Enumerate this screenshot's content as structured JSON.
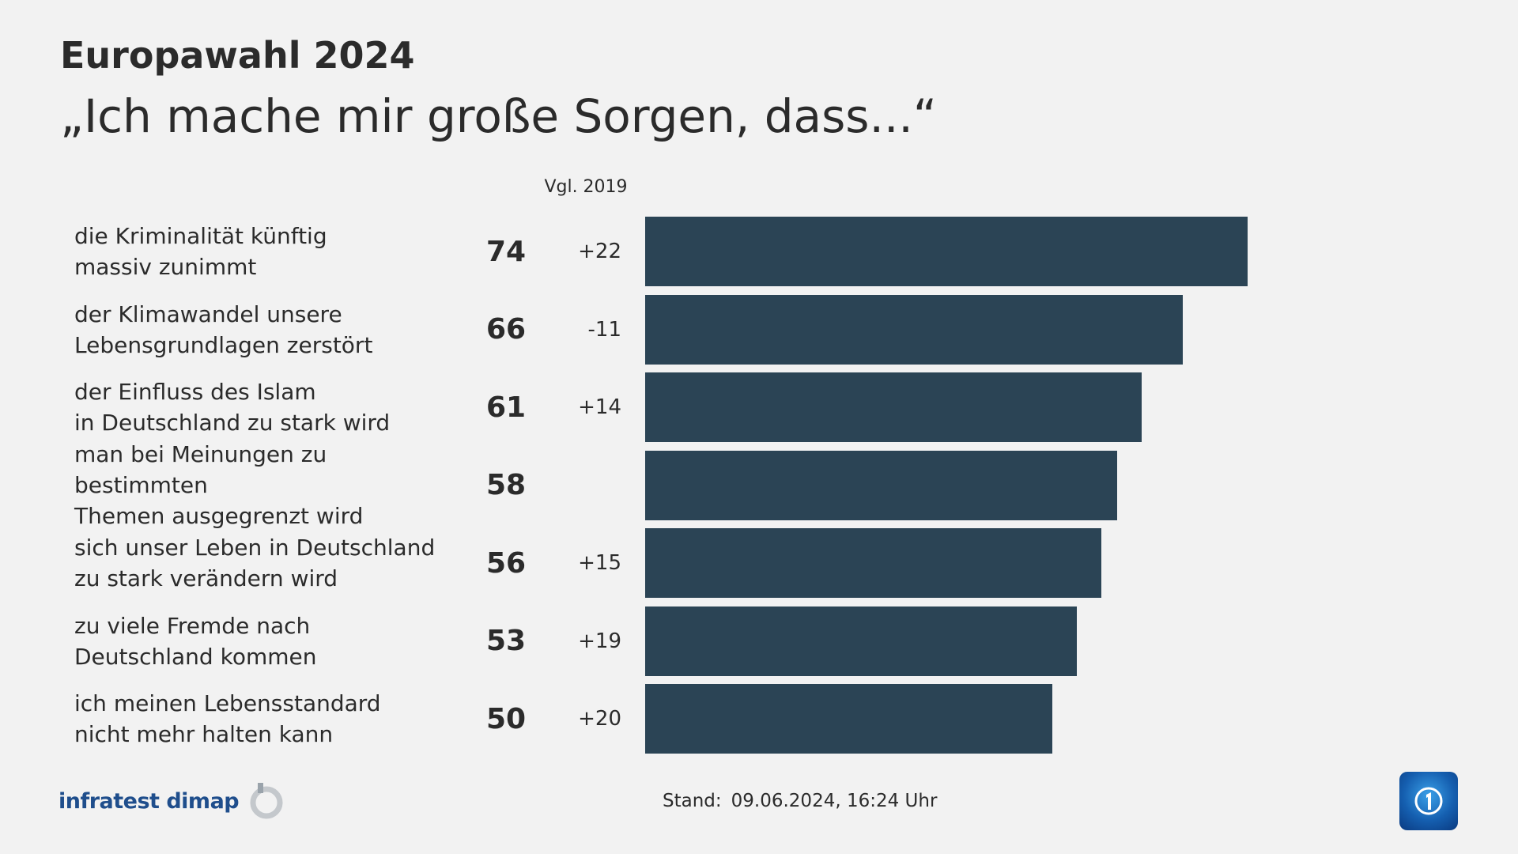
{
  "header": {
    "title": "Europawahl 2024",
    "subtitle": "„Ich mache mir große Sorgen, dass...“"
  },
  "columns": {
    "comparison_label": "Vgl. 2019"
  },
  "chart_data": {
    "type": "bar",
    "orientation": "horizontal",
    "categories": [
      "die Kriminalität künftig\nmassiv zunimmt",
      "der Klimawandel unsere\nLebensgrundlagen zerstört",
      "der Einfluss des Islam\nin Deutschland zu stark wird",
      "man bei Meinungen zu bestimmten\nThemen ausgegrenzt wird",
      "sich unser Leben in Deutschland\nzu stark verändern wird",
      "zu viele Fremde nach\nDeutschland kommen",
      "ich meinen Lebensstandard\nnicht mehr halten kann"
    ],
    "values": [
      74,
      66,
      61,
      58,
      56,
      53,
      50
    ],
    "value_labels": [
      "74",
      "66",
      "61",
      "58",
      "56",
      "53",
      "50"
    ],
    "changes": [
      "+22",
      "-11",
      "+14",
      "",
      "+15",
      "+19",
      "+20"
    ],
    "xlim": [
      0,
      100
    ],
    "bar_color": "#2b4455",
    "grid": false
  },
  "footer": {
    "source": "infratest dimap",
    "stand_label": "Stand:",
    "stand_value": "09.06.2024, 16:24 Uhr"
  },
  "icons": {
    "source_logo": "infratest-dimap-logo-icon",
    "broadcaster_logo": "tagesschau-logo-icon"
  },
  "colors": {
    "background": "#f2f2f2",
    "bar": "#2b4455",
    "text": "#2b2b2b",
    "brand": "#1f4e8c"
  }
}
